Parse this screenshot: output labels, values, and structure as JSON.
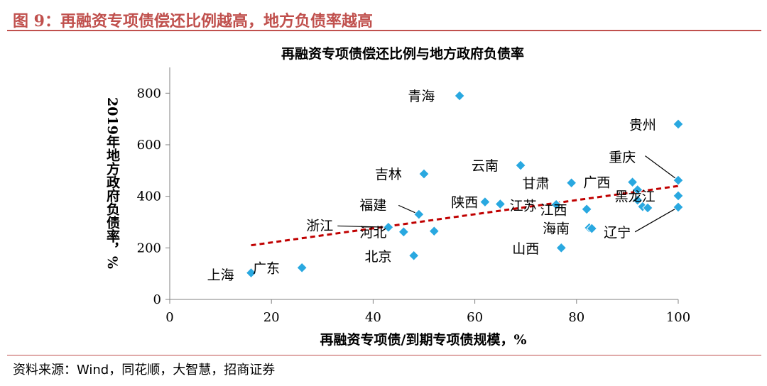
{
  "header": {
    "title": "图 9：再融资专项债偿还比例越高，地方负债率越高"
  },
  "footer": {
    "source": "资料来源：Wind，同花顺，大智慧，招商证券"
  },
  "chart_data": {
    "type": "scatter",
    "title": "再融资专项债偿还比例与地方政府负债率",
    "xlabel": "再融资专项债/到期专项债规模，%",
    "ylabel": "2019年地方政府负债率，%",
    "xlim": [
      0,
      100
    ],
    "ylim": [
      0,
      900
    ],
    "xticks": [
      0,
      20,
      40,
      60,
      80,
      100
    ],
    "yticks": [
      0,
      200,
      400,
      600,
      800
    ],
    "grid": false,
    "legend": false,
    "marker_color": "#29a8e0",
    "marker_edge": "#ffffff",
    "trend_color": "#c00000",
    "trendline": {
      "x": [
        16,
        100
      ],
      "y": [
        210,
        440
      ],
      "style": "dashed"
    },
    "points": [
      {
        "x": 57,
        "y": 790
      },
      {
        "x": 100,
        "y": 680
      },
      {
        "x": 100,
        "y": 462
      },
      {
        "x": 50,
        "y": 487
      },
      {
        "x": 69,
        "y": 520
      },
      {
        "x": 79,
        "y": 452
      },
      {
        "x": 91,
        "y": 455
      },
      {
        "x": 92,
        "y": 425
      },
      {
        "x": 100,
        "y": 402
      },
      {
        "x": 49,
        "y": 330
      },
      {
        "x": 62,
        "y": 378
      },
      {
        "x": 65,
        "y": 370
      },
      {
        "x": 76,
        "y": 368
      },
      {
        "x": 82,
        "y": 350
      },
      {
        "x": 92,
        "y": 385
      },
      {
        "x": 93,
        "y": 360
      },
      {
        "x": 94,
        "y": 355
      },
      {
        "x": 100,
        "y": 358
      },
      {
        "x": 43,
        "y": 280
      },
      {
        "x": 46,
        "y": 262
      },
      {
        "x": 52,
        "y": 265
      },
      {
        "x": 82.5,
        "y": 278
      },
      {
        "x": 83,
        "y": 275
      },
      {
        "x": 48,
        "y": 170
      },
      {
        "x": 77,
        "y": 200
      },
      {
        "x": 16,
        "y": 103
      },
      {
        "x": 26,
        "y": 123
      }
    ],
    "labels": [
      {
        "text": "青海",
        "x": 49.5,
        "y": 790,
        "anchor": "middle"
      },
      {
        "text": "贵州",
        "x": 93,
        "y": 678,
        "anchor": "middle"
      },
      {
        "text": "重庆",
        "x": 89,
        "y": 553,
        "anchor": "middle"
      },
      {
        "text": "吉林",
        "x": 43,
        "y": 487,
        "anchor": "middle"
      },
      {
        "text": "云南",
        "x": 62,
        "y": 520,
        "anchor": "middle"
      },
      {
        "text": "甘肃",
        "x": 72,
        "y": 452,
        "anchor": "middle"
      },
      {
        "text": "广西",
        "x": 84,
        "y": 455,
        "anchor": "middle"
      },
      {
        "text": "黑龙江",
        "x": 91.5,
        "y": 400,
        "anchor": "middle"
      },
      {
        "text": "福建",
        "x": 40,
        "y": 367,
        "anchor": "middle"
      },
      {
        "text": "陕西",
        "x": 58,
        "y": 378,
        "anchor": "middle"
      },
      {
        "text": "江苏",
        "x": 69.5,
        "y": 365,
        "anchor": "middle"
      },
      {
        "text": "江西",
        "x": 75.5,
        "y": 348,
        "anchor": "middle"
      },
      {
        "text": "浙江",
        "x": 29.5,
        "y": 287,
        "anchor": "middle"
      },
      {
        "text": "河北",
        "x": 40,
        "y": 261,
        "anchor": "middle"
      },
      {
        "text": "海南",
        "x": 76,
        "y": 276,
        "anchor": "middle"
      },
      {
        "text": "辽宁",
        "x": 88,
        "y": 261,
        "anchor": "middle"
      },
      {
        "text": "北京",
        "x": 41,
        "y": 168,
        "anchor": "middle"
      },
      {
        "text": "山西",
        "x": 70,
        "y": 198,
        "anchor": "middle"
      },
      {
        "text": "上海",
        "x": 10,
        "y": 97,
        "anchor": "middle"
      },
      {
        "text": "广东",
        "x": 19,
        "y": 122,
        "anchor": "middle"
      }
    ],
    "leaders": [
      {
        "from": [
          93.5,
          557
        ],
        "to": [
          100,
          462
        ]
      },
      {
        "from": [
          45,
          365
        ],
        "to": [
          49,
          330
        ]
      },
      {
        "from": [
          33,
          285
        ],
        "to": [
          43,
          280
        ]
      },
      {
        "from": [
          91.5,
          262
        ],
        "to": [
          100,
          358
        ]
      }
    ]
  }
}
